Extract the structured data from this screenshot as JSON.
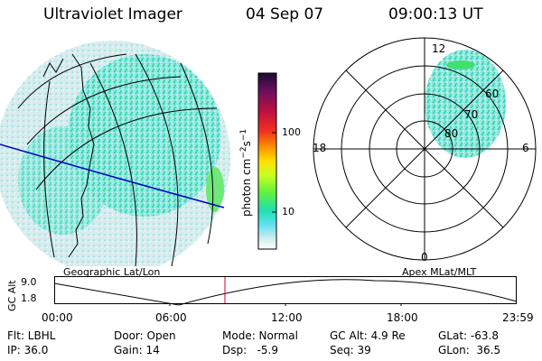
{
  "header": {
    "instrument": "Ultraviolet Imager",
    "date": "04 Sep 07",
    "time": "09:00:13 UT"
  },
  "left_map": {
    "label": "Geographic Lat/Lon"
  },
  "colorbar": {
    "unit_label": "photon cm",
    "unit_exp1": "−2",
    "unit_mid": "s",
    "unit_exp2": "−1",
    "tick_100": "100",
    "tick_10": "10",
    "colors": [
      "#2a0a3c",
      "#6a1060",
      "#b0103c",
      "#e0201a",
      "#ff8a00",
      "#ffd000",
      "#d8ff20",
      "#70f030",
      "#20e0b0",
      "#40d8f0",
      "#c8e8f0",
      "#ffffff"
    ]
  },
  "polar_plot": {
    "label": "Apex MLat/MLT",
    "mlt_top": "12",
    "mlt_left": "18",
    "mlt_right": "6",
    "mlt_bottom": "0",
    "lat_60": "60",
    "lat_70": "70",
    "lat_80": "80"
  },
  "altitude_strip": {
    "ylabel": "GC Alt",
    "y_top": "9.0",
    "y_bottom": "1.8",
    "x_ticks": [
      "00:00",
      "06:00",
      "12:00",
      "18:00",
      "23:59"
    ]
  },
  "info": {
    "filter": "Flt: LBHL",
    "ip": "IP: 36.0",
    "door": "Door: Open",
    "gain": "Gain: 14",
    "mode": "Mode: Normal",
    "dsp": "Dsp:   -5.9",
    "gc_alt": "GC Alt: 4.9 Re",
    "seq": "Seq: 39",
    "glat": "GLat: -63.8",
    "glon": "GLon:  36.5"
  }
}
